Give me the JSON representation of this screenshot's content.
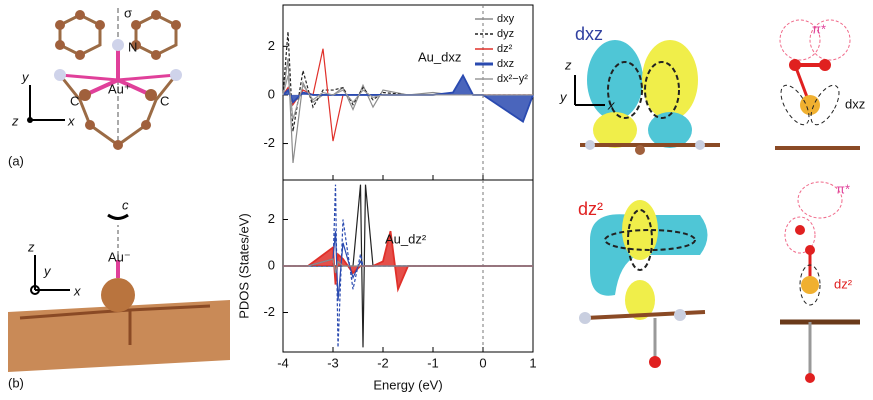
{
  "panel_a": {
    "tag": "(a)",
    "sigma": "σ",
    "n": "N",
    "au": "Au⁺",
    "c_left": "C",
    "c_right": "C",
    "axis_y": "y",
    "axis_z": "z",
    "axis_x": "x"
  },
  "panel_b": {
    "tag": "(b)",
    "axis_z": "z",
    "axis_c": "c",
    "axis_y": "y",
    "au": "Au⁻",
    "axis_x": "x"
  },
  "panel_c": {
    "dxz_title": "dxz",
    "pi_top": "π*",
    "dxz_side": "dxz",
    "axis_z": "z",
    "axis_y": "y",
    "axis_x": "x",
    "dz2_title": "dz²",
    "pi_bottom": "π*",
    "dz2_side": "dz²"
  },
  "chart_data": [
    {
      "type": "line",
      "y_label": "PDOS (States/eV)",
      "annotation": "Au_dxz",
      "x": [
        -4,
        -3.9,
        -3.8,
        -3.6,
        -3.4,
        -3.2,
        -3.0,
        -2.8,
        -2.6,
        -2.4,
        -2.2,
        -2.0,
        -1.5,
        -1.0,
        -0.6,
        -0.4,
        -0.2,
        0,
        0.8,
        1
      ],
      "series": [
        {
          "name": "dxy",
          "color": "#8c8c8c",
          "values": [
            0,
            1.5,
            -2.8,
            0.5,
            -0.3,
            0,
            0,
            0.3,
            -0.6,
            0.4,
            -0.5,
            0.2,
            0,
            0.1,
            0,
            0,
            0,
            0,
            0,
            0
          ]
        },
        {
          "name": "dyz",
          "color": "#222222",
          "dash": true,
          "values": [
            0,
            2.6,
            -1.5,
            1.0,
            -0.5,
            0.2,
            0.2,
            0.3,
            -0.4,
            0.3,
            -0.2,
            0.1,
            0,
            0,
            0,
            0,
            0,
            0,
            0,
            0
          ]
        },
        {
          "name": "dz²",
          "color": "#e0302a",
          "values": [
            0,
            0.3,
            -0.4,
            0.2,
            0,
            1.9,
            -1.9,
            0,
            0,
            0,
            0,
            0,
            0,
            0,
            0,
            0,
            0,
            0,
            0,
            0
          ]
        },
        {
          "name": "dxz",
          "color": "#2a4ab0",
          "fill": true,
          "values": [
            0,
            0.2,
            -0.3,
            0.1,
            0,
            0,
            0,
            0,
            0,
            0,
            0,
            0,
            0,
            0,
            0.1,
            0.8,
            0,
            0,
            -1.1,
            0
          ]
        },
        {
          "name": "dx²−y²",
          "color": "#9a9a9a",
          "values": [
            0,
            0.8,
            -1.0,
            0.4,
            -0.2,
            0.1,
            0,
            0.2,
            -0.3,
            0.2,
            -0.1,
            0,
            0,
            0,
            0,
            0,
            0,
            0,
            0,
            0
          ]
        }
      ],
      "xlim": [
        -4,
        1
      ],
      "xticks": [
        -4,
        -3,
        -2,
        -1,
        0,
        1
      ],
      "ylim": [
        -3.5,
        3.7
      ],
      "yticks": [
        -2,
        0,
        2
      ]
    },
    {
      "type": "line",
      "x_label": "Energy (eV)",
      "annotation": "Au_dz²",
      "x": [
        -4,
        -3.5,
        -3.0,
        -2.95,
        -2.9,
        -2.8,
        -2.6,
        -2.45,
        -2.4,
        -2.35,
        -2.2,
        -2.0,
        -1.85,
        -1.7,
        -1.5,
        -1.0,
        -0.5,
        0,
        0.5,
        1
      ],
      "series": [
        {
          "color": "#222222",
          "values": [
            0,
            0,
            0,
            0,
            0,
            0,
            0,
            3.5,
            -3.5,
            3.5,
            0,
            0,
            0,
            0,
            0,
            0,
            0,
            0,
            0,
            0
          ]
        },
        {
          "color": "#2a4ab0",
          "dash": true,
          "values": [
            0,
            0,
            0,
            3.5,
            -3.5,
            2.0,
            -1.0,
            0.5,
            0,
            0,
            0,
            0,
            0,
            0,
            0,
            0,
            0,
            0,
            0,
            0
          ]
        },
        {
          "color": "#e0302a",
          "fill": true,
          "values": [
            0,
            0,
            0.8,
            -0.8,
            0.5,
            0.3,
            -0.3,
            0,
            0,
            0,
            0,
            0.2,
            1.5,
            -1.0,
            0,
            0,
            0,
            0,
            0,
            0
          ]
        },
        {
          "color": "#2a4ab0",
          "values": [
            0,
            0,
            0.3,
            1.5,
            -1.5,
            1.0,
            -0.5,
            0.2,
            0,
            0,
            0,
            0,
            0,
            0,
            0,
            0,
            0,
            0,
            0,
            0
          ]
        },
        {
          "color": "#8c8c8c",
          "values": [
            0,
            0,
            0.3,
            -0.3,
            0.2,
            0,
            0,
            0,
            0,
            0,
            0,
            0,
            0,
            0,
            0,
            0,
            0,
            0,
            0,
            0
          ]
        }
      ],
      "xlim": [
        -4,
        1
      ],
      "xticks": [
        -4,
        -3,
        -2,
        -1,
        0,
        1
      ],
      "ylim": [
        -3.7,
        3.7
      ],
      "yticks": [
        -2,
        0,
        2
      ]
    }
  ]
}
